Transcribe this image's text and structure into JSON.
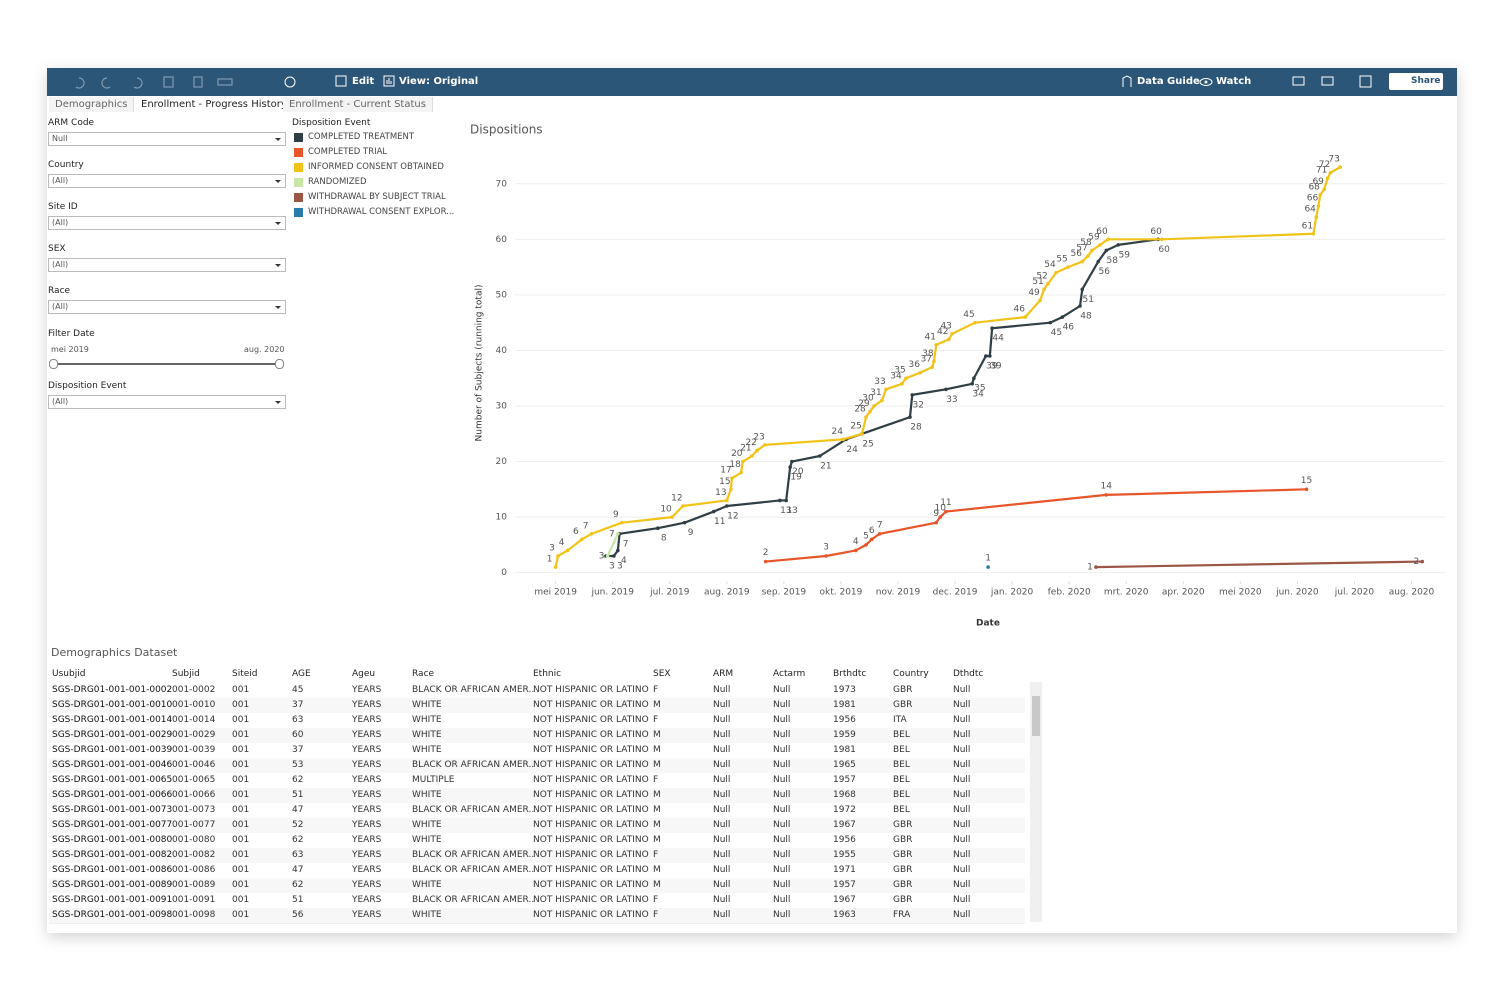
{
  "toolbar": {
    "edit": "Edit",
    "view": "View: Original",
    "data_guide": "Data Guide",
    "watch": "Watch",
    "share": "Share"
  },
  "tabs": [
    "Demographics",
    "Enrollment - Progress History",
    "Enrollment - Current Status"
  ],
  "filters": [
    {
      "label": "ARM Code",
      "value": "Null"
    },
    {
      "label": "Country",
      "value": "(All)"
    },
    {
      "label": "Site ID",
      "value": "(All)"
    },
    {
      "label": "SEX",
      "value": "(All)"
    },
    {
      "label": "Race",
      "value": "(All)"
    },
    {
      "label": "Disposition Event",
      "value": "(All)"
    }
  ],
  "filter_date": {
    "label": "Filter Date",
    "start": "mei 2019",
    "end": "aug. 2020"
  },
  "chart_data": {
    "type": "line",
    "title": "Dispositions",
    "legend_title": "Disposition Event",
    "x_label": "Date",
    "y_label": "Number of Subjects (running total)",
    "xlim": [
      -0.45,
      15.5
    ],
    "ylim": [
      -1.5,
      75
    ],
    "xticks": [
      {
        "value": 0,
        "label": "mei 2019"
      },
      {
        "value": 1,
        "label": "jun. 2019"
      },
      {
        "value": 2,
        "label": "jul. 2019"
      },
      {
        "value": 3,
        "label": "aug. 2019"
      },
      {
        "value": 4,
        "label": "sep. 2019"
      },
      {
        "value": 5,
        "label": "okt. 2019"
      },
      {
        "value": 6,
        "label": "nov. 2019"
      },
      {
        "value": 7,
        "label": "dec. 2019"
      },
      {
        "value": 8,
        "label": "jan. 2020"
      },
      {
        "value": 9,
        "label": "feb. 2020"
      },
      {
        "value": 10,
        "label": "mrt. 2020"
      },
      {
        "value": 11,
        "label": "apr. 2020"
      },
      {
        "value": 12,
        "label": "mei 2020"
      },
      {
        "value": 13,
        "label": "jun. 2020"
      },
      {
        "value": 14,
        "label": "jul. 2020"
      },
      {
        "value": 15,
        "label": "aug. 2020"
      }
    ],
    "yticks": [
      0,
      10,
      20,
      30,
      40,
      50,
      60,
      70
    ],
    "grid": true,
    "series": [
      {
        "name": "COMPLETED TREATMENT",
        "color": "#2f3f45",
        "x": [
          0.88,
          1.02,
          1.09,
          1.12,
          1.79,
          2.26,
          2.77,
          3.0,
          3.93,
          4.04,
          4.11,
          4.14,
          4.63,
          5.09,
          5.37,
          6.21,
          6.25,
          6.84,
          7.3,
          7.33,
          7.54,
          7.61,
          7.65,
          8.67,
          8.88,
          9.19,
          9.23,
          9.51,
          9.65,
          9.86,
          10.56
        ],
        "values": [
          3,
          3,
          4,
          7,
          8,
          9,
          11,
          12,
          13,
          13,
          19,
          20,
          21,
          24,
          25,
          28,
          32,
          33,
          34,
          35,
          39,
          39,
          44,
          45,
          46,
          48,
          51,
          56,
          58,
          59,
          60
        ]
      },
      {
        "name": "COMPLETED TRIAL",
        "color": "#e8552a",
        "x": [
          3.68,
          4.74,
          5.26,
          5.44,
          5.54,
          5.68,
          6.67,
          6.74,
          6.84,
          9.65,
          13.16
        ],
        "values": [
          2,
          3,
          4,
          5,
          6,
          7,
          9,
          10,
          11,
          14,
          15
        ]
      },
      {
        "name": "INFORMED CONSENT OBTAINED",
        "color": "#f1c318",
        "x": [
          0,
          0.04,
          0.21,
          0.46,
          0.63,
          1.16,
          2.04,
          2.23,
          3.0,
          3.07,
          3.09,
          3.25,
          3.28,
          3.44,
          3.53,
          3.67,
          5.04,
          5.37,
          5.44,
          5.51,
          5.58,
          5.72,
          5.79,
          6.07,
          6.14,
          6.39,
          6.6,
          6.63,
          6.67,
          6.89,
          6.95,
          7.35,
          8.23,
          8.49,
          8.56,
          8.63,
          8.77,
          8.98,
          9.23,
          9.33,
          9.4,
          9.54,
          9.68,
          10.63,
          13.28,
          13.33,
          13.37,
          13.4,
          13.47,
          13.53,
          13.58,
          13.75
        ],
        "values": [
          1,
          3,
          4,
          6,
          7,
          9,
          10,
          12,
          13,
          15,
          17,
          18,
          20,
          21,
          22,
          23,
          24,
          25,
          28,
          29,
          30,
          31,
          33,
          34,
          35,
          36,
          37,
          38,
          41,
          42,
          43,
          45,
          46,
          49,
          51,
          52,
          54,
          55,
          56,
          57,
          58,
          59,
          60,
          60,
          61,
          64,
          66,
          68,
          69,
          71,
          72,
          73
        ]
      },
      {
        "name": "RANDOMIZED",
        "color": "#c8e6a5",
        "x": [
          0.91,
          1.09
        ],
        "values": [
          3,
          7
        ]
      },
      {
        "name": "WITHDRAWAL BY SUBJECT TRIAL",
        "color": "#9c5645",
        "x": [
          9.47,
          15.19
        ],
        "values": [
          1,
          2
        ]
      },
      {
        "name": "WITHDRAWAL CONSENT EXPLOR...",
        "color": "#2a7aab",
        "x": [
          7.58
        ],
        "values": [
          1
        ]
      }
    ]
  },
  "table": {
    "title": "Demographics Dataset",
    "columns": [
      "Usubjid",
      "Subjid",
      "Siteid",
      "AGE",
      "Ageu",
      "Race",
      "Ethnic",
      "SEX",
      "ARM",
      "Actarm",
      "Brthdtc",
      "Country",
      "Dthdtc"
    ],
    "rows": [
      [
        "SGS-DRG01-001-001-0002",
        "001-0002",
        "001",
        "45",
        "YEARS",
        "BLACK OR AFRICAN AMER..",
        "NOT HISPANIC OR LATINO",
        "F",
        "Null",
        "Null",
        "1973",
        "GBR",
        "Null"
      ],
      [
        "SGS-DRG01-001-001-0010",
        "001-0010",
        "001",
        "37",
        "YEARS",
        "WHITE",
        "NOT HISPANIC OR LATINO",
        "M",
        "Null",
        "Null",
        "1981",
        "GBR",
        "Null"
      ],
      [
        "SGS-DRG01-001-001-0014",
        "001-0014",
        "001",
        "63",
        "YEARS",
        "WHITE",
        "NOT HISPANIC OR LATINO",
        "F",
        "Null",
        "Null",
        "1956",
        "ITA",
        "Null"
      ],
      [
        "SGS-DRG01-001-001-0029",
        "001-0029",
        "001",
        "60",
        "YEARS",
        "WHITE",
        "NOT HISPANIC OR LATINO",
        "M",
        "Null",
        "Null",
        "1959",
        "BEL",
        "Null"
      ],
      [
        "SGS-DRG01-001-001-0039",
        "001-0039",
        "001",
        "37",
        "YEARS",
        "WHITE",
        "NOT HISPANIC OR LATINO",
        "M",
        "Null",
        "Null",
        "1981",
        "BEL",
        "Null"
      ],
      [
        "SGS-DRG01-001-001-0046",
        "001-0046",
        "001",
        "53",
        "YEARS",
        "BLACK OR AFRICAN AMER..",
        "NOT HISPANIC OR LATINO",
        "M",
        "Null",
        "Null",
        "1965",
        "BEL",
        "Null"
      ],
      [
        "SGS-DRG01-001-001-0065",
        "001-0065",
        "001",
        "62",
        "YEARS",
        "MULTIPLE",
        "NOT HISPANIC OR LATINO",
        "F",
        "Null",
        "Null",
        "1957",
        "BEL",
        "Null"
      ],
      [
        "SGS-DRG01-001-001-0066",
        "001-0066",
        "001",
        "51",
        "YEARS",
        "WHITE",
        "NOT HISPANIC OR LATINO",
        "M",
        "Null",
        "Null",
        "1968",
        "BEL",
        "Null"
      ],
      [
        "SGS-DRG01-001-001-0073",
        "001-0073",
        "001",
        "47",
        "YEARS",
        "BLACK OR AFRICAN AMER..",
        "NOT HISPANIC OR LATINO",
        "M",
        "Null",
        "Null",
        "1972",
        "BEL",
        "Null"
      ],
      [
        "SGS-DRG01-001-001-0077",
        "001-0077",
        "001",
        "52",
        "YEARS",
        "WHITE",
        "NOT HISPANIC OR LATINO",
        "M",
        "Null",
        "Null",
        "1967",
        "GBR",
        "Null"
      ],
      [
        "SGS-DRG01-001-001-0080",
        "001-0080",
        "001",
        "62",
        "YEARS",
        "WHITE",
        "NOT HISPANIC OR LATINO",
        "M",
        "Null",
        "Null",
        "1956",
        "GBR",
        "Null"
      ],
      [
        "SGS-DRG01-001-001-0082",
        "001-0082",
        "001",
        "63",
        "YEARS",
        "BLACK OR AFRICAN AMER..",
        "NOT HISPANIC OR LATINO",
        "F",
        "Null",
        "Null",
        "1955",
        "GBR",
        "Null"
      ],
      [
        "SGS-DRG01-001-001-0086",
        "001-0086",
        "001",
        "47",
        "YEARS",
        "BLACK OR AFRICAN AMER..",
        "NOT HISPANIC OR LATINO",
        "M",
        "Null",
        "Null",
        "1971",
        "GBR",
        "Null"
      ],
      [
        "SGS-DRG01-001-001-0089",
        "001-0089",
        "001",
        "62",
        "YEARS",
        "WHITE",
        "NOT HISPANIC OR LATINO",
        "M",
        "Null",
        "Null",
        "1957",
        "GBR",
        "Null"
      ],
      [
        "SGS-DRG01-001-001-0091",
        "001-0091",
        "001",
        "51",
        "YEARS",
        "BLACK OR AFRICAN AMER..",
        "NOT HISPANIC OR LATINO",
        "F",
        "Null",
        "Null",
        "1967",
        "GBR",
        "Null"
      ],
      [
        "SGS-DRG01-001-001-0098",
        "001-0098",
        "001",
        "56",
        "YEARS",
        "WHITE",
        "NOT HISPANIC OR LATINO",
        "F",
        "Null",
        "Null",
        "1963",
        "FRA",
        "Null"
      ]
    ]
  }
}
